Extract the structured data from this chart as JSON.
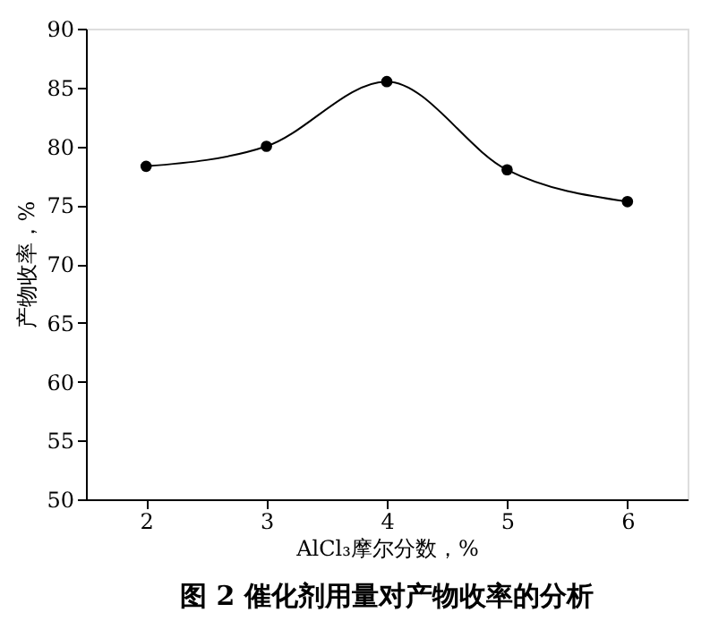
{
  "chart_data": {
    "type": "line",
    "title": "图 2   催化剂用量对产物收率的分析",
    "xlabel": "AlCl₃摩尔分数，%",
    "ylabel": "产物收率，%",
    "x": [
      2,
      3,
      4,
      5,
      6
    ],
    "series": [
      {
        "color": "#000000",
        "values": [
          78.3,
          80.0,
          85.5,
          78.0,
          75.3
        ]
      }
    ],
    "xlim": [
      1.5,
      6.5
    ],
    "xticks": [
      2,
      3,
      4,
      5,
      6
    ],
    "ylim": [
      50,
      90
    ],
    "yticks": [
      50,
      55,
      60,
      65,
      70,
      75,
      80,
      85,
      90
    ],
    "marker": "circle",
    "line_style": "solid",
    "grid": false
  }
}
